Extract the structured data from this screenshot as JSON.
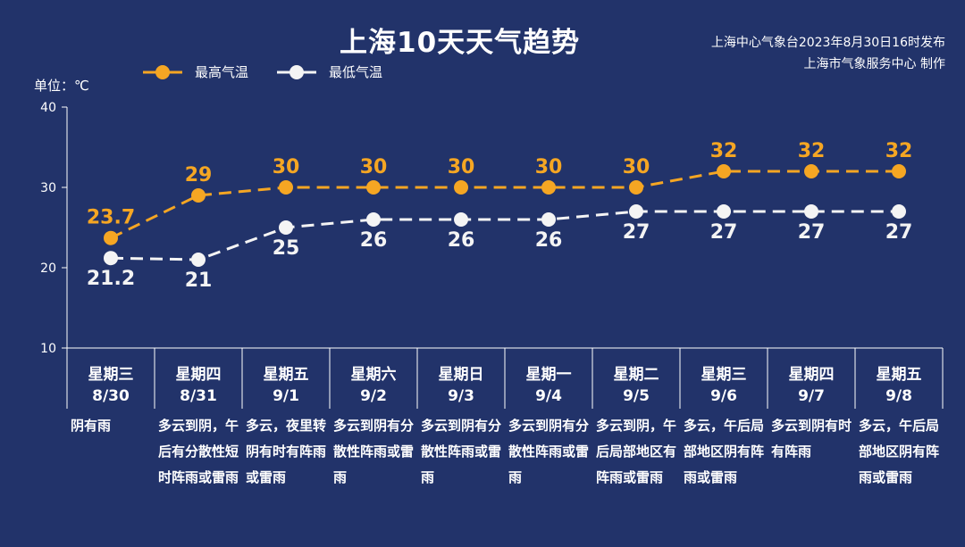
{
  "header": {
    "title": "上海10天天气趋势",
    "source_line1": "上海中心气象台2023年8月30日16时发布",
    "source_line2": "上海市气象服务中心 制作"
  },
  "chart_data": {
    "type": "line",
    "unit_label": "单位：℃",
    "ylim": [
      10,
      40
    ],
    "yticks": [
      "10",
      "20",
      "30",
      "40"
    ],
    "legend_position": "top-left",
    "categories": [
      "8/30",
      "8/31",
      "9/1",
      "9/2",
      "9/3",
      "9/4",
      "9/5",
      "9/6",
      "9/7",
      "9/8"
    ],
    "weekdays": [
      "星期三",
      "星期四",
      "星期五",
      "星期六",
      "星期日",
      "星期一",
      "星期二",
      "星期三",
      "星期四",
      "星期五"
    ],
    "descriptions": [
      "阴有雨",
      "多云到阴，午后有分散性短时阵雨或雷雨",
      "多云，夜里转阴有时有阵雨或雷雨",
      "多云到阴有分散性阵雨或雷雨",
      "多云到阴有分散性阵雨或雷雨",
      "多云到阴有分散性阵雨或雷雨",
      "多云到阴，午后局部地区有阵雨或雷雨",
      "多云，午后局部地区阴有阵雨或雷雨",
      "多云到阴有时有阵雨",
      "多云，午后局部地区阴有阵雨或雷雨"
    ],
    "series": [
      {
        "name": "最高气温",
        "color": "#f5a623",
        "values": [
          23.7,
          29,
          30,
          30,
          30,
          30,
          30,
          32,
          32,
          32
        ],
        "labels": [
          "23.7",
          "29",
          "30",
          "30",
          "30",
          "30",
          "30",
          "32",
          "32",
          "32"
        ]
      },
      {
        "name": "最低气温",
        "color": "#f4f4f4",
        "values": [
          21.2,
          21,
          25,
          26,
          26,
          26,
          27,
          27,
          27,
          27
        ],
        "labels": [
          "21.2",
          "21",
          "25",
          "26",
          "26",
          "26",
          "27",
          "27",
          "27",
          "27"
        ]
      }
    ]
  }
}
